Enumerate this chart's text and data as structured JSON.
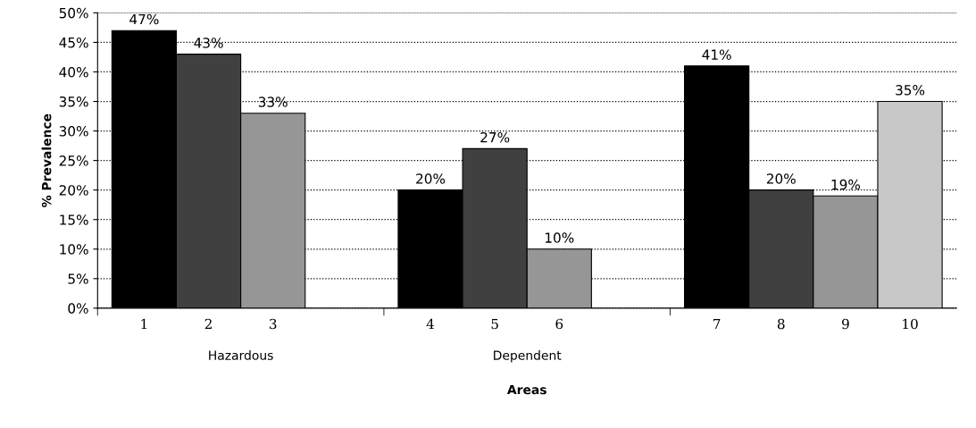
{
  "chart_data": {
    "type": "bar",
    "xlabel": "Areas",
    "ylabel": "% Prevalence",
    "categories": [
      "Hazardous",
      "Dependent",
      null
    ],
    "series": [
      {
        "color": "#000000",
        "values": [
          47,
          20,
          41
        ],
        "value_labels": [
          "47%",
          "20%",
          "41%"
        ]
      },
      {
        "color": "#404040",
        "values": [
          43,
          27,
          20
        ],
        "value_labels": [
          "43%",
          "27%",
          "20%"
        ]
      },
      {
        "color": "#969696",
        "values": [
          33,
          10,
          19
        ],
        "value_labels": [
          "33%",
          "10%",
          "19%"
        ]
      },
      {
        "color": "#c8c8c8",
        "values": [
          null,
          null,
          35
        ],
        "value_labels": [
          null,
          null,
          "35%"
        ]
      }
    ],
    "ylim": [
      0,
      50
    ],
    "yticks": [
      {
        "value": 0,
        "label": "0%"
      },
      {
        "value": 5,
        "label": "5%"
      },
      {
        "value": 10,
        "label": "10%"
      },
      {
        "value": 15,
        "label": "15%"
      },
      {
        "value": 20,
        "label": "20%"
      },
      {
        "value": 25,
        "label": "25%"
      },
      {
        "value": 30,
        "label": "30%"
      },
      {
        "value": 35,
        "label": "35%"
      },
      {
        "value": 40,
        "label": "40%"
      },
      {
        "value": 45,
        "label": "45%"
      },
      {
        "value": 50,
        "label": "50%"
      }
    ],
    "grid": "y",
    "annotations": [
      "1",
      "2",
      "3",
      "4",
      "5",
      "6",
      "7",
      "8",
      "9",
      "10"
    ]
  }
}
